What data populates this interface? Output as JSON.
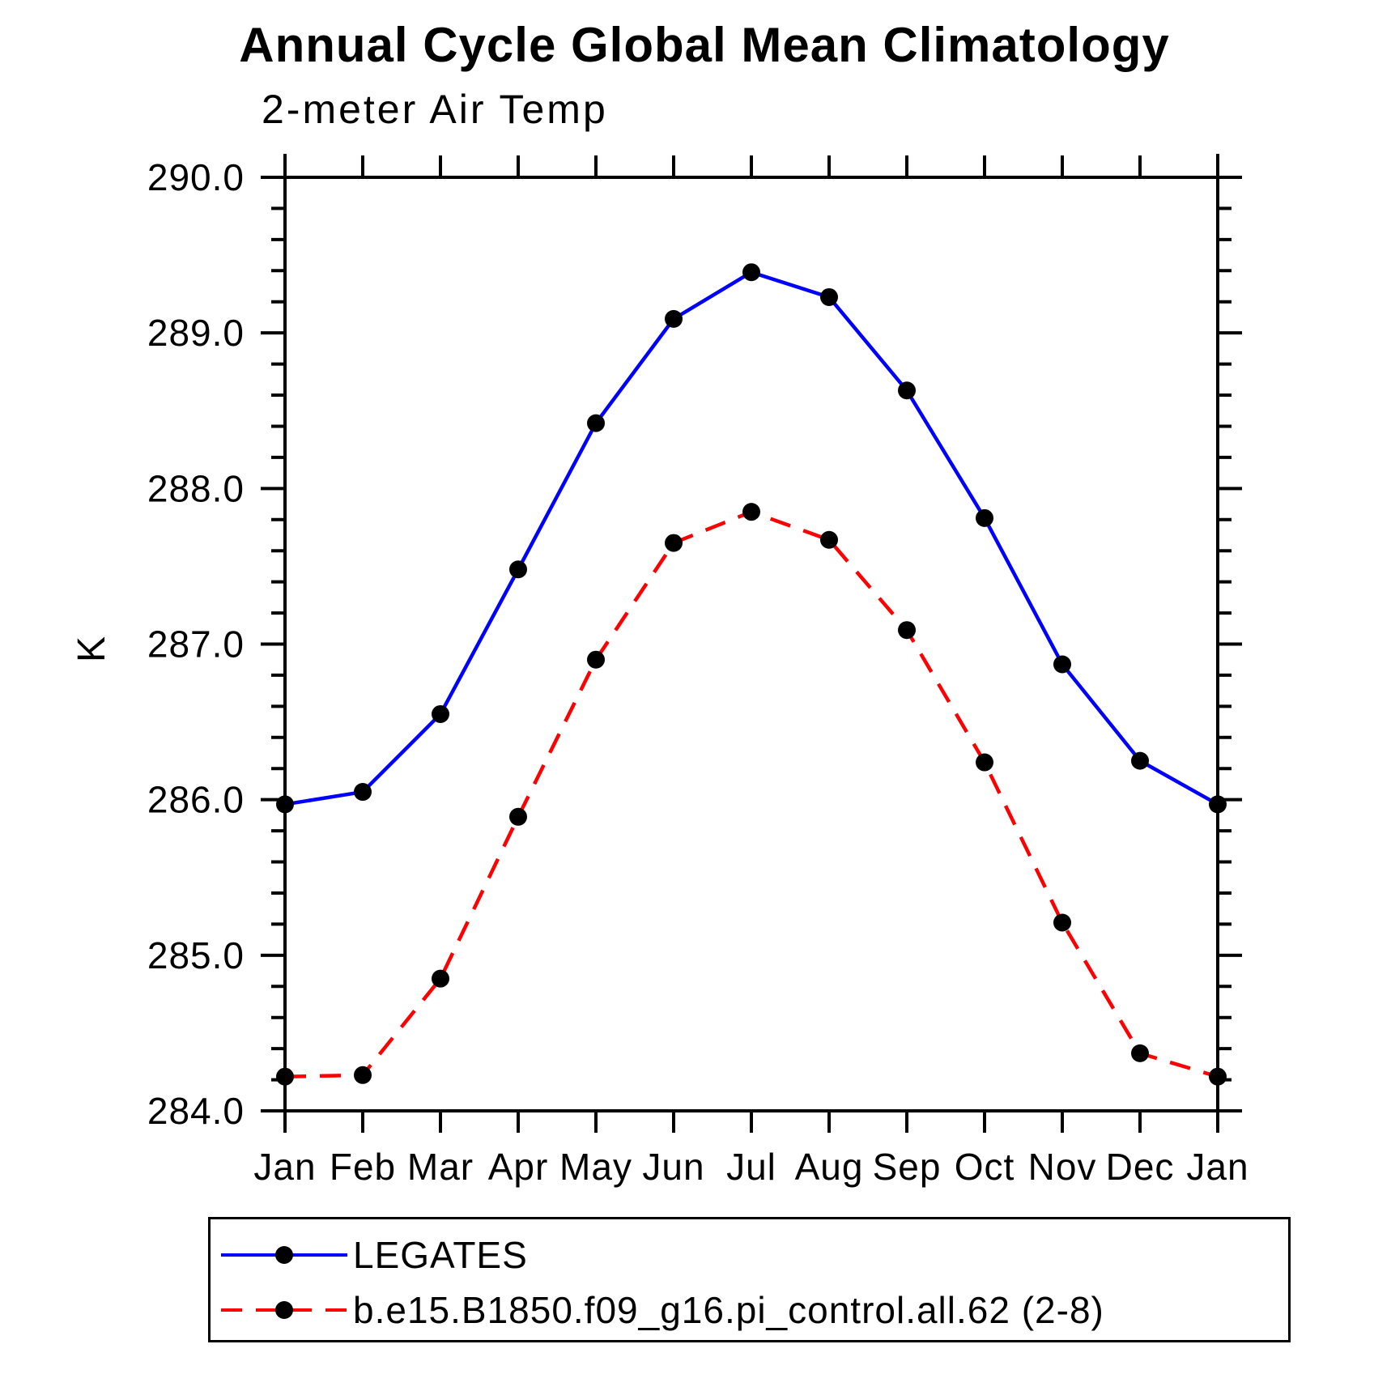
{
  "chart_data": {
    "type": "line",
    "title": "Annual Cycle Global Mean Climatology",
    "subtitle": "2-meter Air Temp",
    "xlabel": "",
    "ylabel": "K",
    "x_categories": [
      "Jan",
      "Feb",
      "Mar",
      "Apr",
      "May",
      "Jun",
      "Jul",
      "Aug",
      "Sep",
      "Oct",
      "Nov",
      "Dec",
      "Jan"
    ],
    "ylim": [
      284.0,
      290.0
    ],
    "y_major_tick_step": 1.0,
    "y_minor_tick_step": 0.2,
    "y_tick_labels": [
      "290.0",
      "289.0",
      "288.0",
      "287.0",
      "286.0",
      "285.0",
      "284.0"
    ],
    "grid": false,
    "legend_position": "below-left",
    "series": [
      {
        "name": "LEGATES",
        "color": "#0000ff",
        "style": "solid",
        "marker": "circle",
        "marker_color": "#000000",
        "values": [
          285.97,
          286.05,
          286.55,
          287.48,
          288.42,
          289.09,
          289.39,
          289.23,
          288.63,
          287.81,
          286.87,
          286.25,
          285.97
        ]
      },
      {
        "name": "b.e15.B1850.f09_g16.pi_control.all.62 (2-8)",
        "color": "#ff0000",
        "style": "dashed",
        "marker": "circle",
        "marker_color": "#000000",
        "values": [
          284.22,
          284.23,
          284.85,
          285.89,
          286.9,
          287.65,
          287.85,
          287.67,
          287.09,
          286.24,
          285.21,
          284.37,
          284.22
        ]
      }
    ]
  }
}
